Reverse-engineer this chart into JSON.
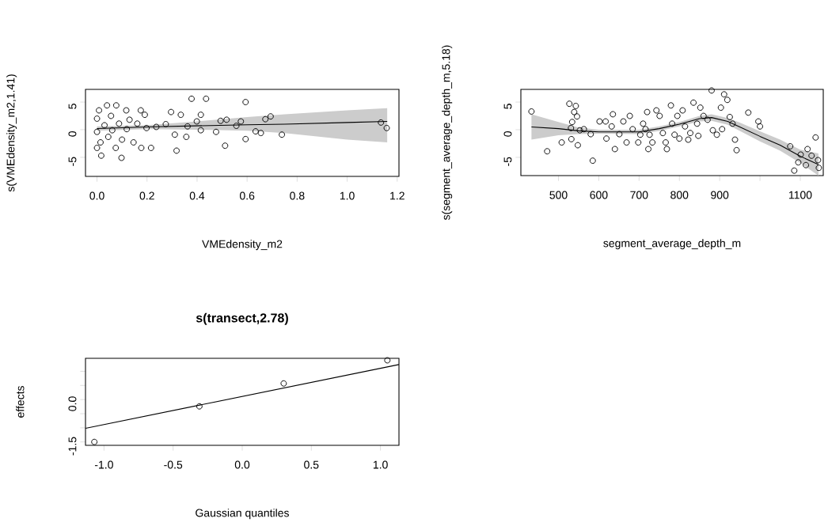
{
  "chart_data": [
    {
      "type": "scatter",
      "xlabel": "VMEdensity_m2",
      "ylabel": "s(VMEdensity_m2,1.41)",
      "xlim": [
        -0.046,
        1.207
      ],
      "ylim": [
        -8.46,
        7.3
      ],
      "xticks": [
        {
          "value": 0,
          "label": "0.0"
        },
        0.2,
        0.4,
        0.6,
        0.8,
        {
          "value": 1,
          "label": "1.0"
        },
        1.2
      ],
      "yticks": [
        -5,
        0,
        5
      ],
      "series": [
        {
          "type": "line",
          "color": "#000000",
          "line_style": "solid",
          "x": [
            0.0,
            0.2,
            0.4,
            0.6,
            0.75,
            1.0,
            1.16
          ],
          "values": [
            0.2,
            0.5,
            0.7,
            0.9,
            1.0,
            1.3,
            1.5
          ],
          "lower": [
            -0.2,
            0.1,
            0.0,
            -0.2,
            -0.6,
            -1.8,
            -2.3
          ],
          "upper": [
            0.6,
            0.8,
            1.5,
            2.3,
            2.8,
            3.5,
            3.9
          ]
        },
        {
          "type": "scatter",
          "color": "#000000",
          "marker": "circle",
          "x": [
            0.0,
            0.0,
            0.0,
            0.008,
            0.014,
            0.017,
            0.03,
            0.04,
            0.045,
            0.056,
            0.061,
            0.077,
            0.075,
            0.088,
            0.098,
            0.1,
            0.117,
            0.119,
            0.13,
            0.146,
            0.161,
            0.175,
            0.177,
            0.191,
            0.198,
            0.216,
            0.237,
            0.275,
            0.296,
            0.311,
            0.318,
            0.335,
            0.357,
            0.362,
            0.378,
            0.399,
            0.415,
            0.415,
            0.436,
            0.476,
            0.494,
            0.512,
            0.518,
            0.557,
            0.575,
            0.594,
            0.594,
            0.634,
            0.655,
            0.673,
            0.694,
            0.739,
            1.135,
            1.158
          ],
          "values": [
            2.0,
            -0.4,
            -3.3,
            3.5,
            -2.3,
            -4.7,
            0.8,
            4.4,
            -1.3,
            2.5,
            -0.1,
            4.4,
            -3.3,
            1.1,
            -5.1,
            -1.8,
            3.5,
            0.1,
            1.8,
            -2.3,
            1.1,
            3.5,
            -3.3,
            2.7,
            0.3,
            -3.3,
            0.5,
            1.0,
            3.2,
            -0.9,
            -3.8,
            2.7,
            -1.3,
            0.6,
            5.6,
            1.5,
            -0.1,
            2.7,
            5.6,
            -0.4,
            1.6,
            -2.9,
            1.8,
            0.7,
            1.5,
            5.0,
            -1.7,
            -0.3,
            -0.6,
            1.9,
            2.4,
            -0.9,
            1.3,
            0.3
          ]
        }
      ]
    },
    {
      "type": "scatter",
      "xlabel": "segment_average_depth_m",
      "ylabel": "s(segment_average_depth_m,5.18)",
      "xlim": [
        406.7,
        1157
      ],
      "ylim": [
        -8.3,
        7.3
      ],
      "xticks": [
        500,
        600,
        700,
        800,
        900,
        {
          "value": 1000,
          "label": null
        },
        1100
      ],
      "yticks": [
        -5,
        0,
        5
      ],
      "series": [
        {
          "type": "line",
          "color": "#000000",
          "line_style": "solid",
          "x": [
            433,
            500,
            550,
            600,
            700,
            750,
            800,
            850,
            880,
            920,
            950,
            1000,
            1050,
            1100,
            1145
          ],
          "values": [
            0.5,
            0.2,
            -0.2,
            -0.4,
            -0.4,
            0.2,
            1.0,
            2.0,
            2.2,
            1.5,
            0.5,
            -1.2,
            -2.8,
            -4.8,
            -6.3
          ],
          "lower": [
            -1.8,
            -1.0,
            -0.8,
            -0.7,
            -0.8,
            -0.2,
            0.6,
            1.5,
            1.6,
            0.9,
            -0.2,
            -2.1,
            -3.8,
            -6.0,
            -8.3
          ],
          "upper": [
            2.8,
            1.4,
            0.4,
            0.0,
            0.0,
            0.6,
            1.4,
            2.5,
            2.8,
            2.1,
            1.3,
            -0.3,
            -1.8,
            -3.6,
            -4.3
          ]
        },
        {
          "type": "scatter",
          "color": "#000000",
          "marker": "circle",
          "x": [
            433,
            472,
            508,
            527,
            543,
            539,
            546,
            534,
            531,
            532,
            548,
            553,
            563,
            580,
            585,
            602,
            617,
            619,
            635,
            640,
            632,
            651,
            661,
            669,
            677,
            684,
            698,
            703,
            710,
            716,
            720,
            723,
            726,
            733,
            743,
            751,
            759,
            766,
            769,
            779,
            782,
            788,
            795,
            800,
            808,
            814,
            822,
            827,
            835,
            844,
            847,
            852,
            860,
            870,
            880,
            883,
            893,
            903,
            911,
            906,
            919,
            925,
            932,
            938,
            942,
            971,
            996,
            1000,
            1075,
            1085,
            1095,
            1101,
            1118,
            1128,
            1138,
            1144,
            1146,
            1114
          ],
          "values": [
            3.3,
            -3.9,
            -2.3,
            4.7,
            4.3,
            3.2,
            2.4,
            1.4,
            0.3,
            -1.7,
            -2.8,
            -0.1,
            0.1,
            -0.8,
            -5.6,
            1.5,
            1.5,
            -1.6,
            2.8,
            -3.5,
            0.6,
            -0.8,
            1.5,
            -2.3,
            2.5,
            0.1,
            -2.3,
            -0.9,
            1.1,
            0.1,
            3.2,
            -3.5,
            -0.9,
            -2.3,
            3.5,
            2.5,
            -0.6,
            -2.3,
            -3.5,
            4.4,
            1.1,
            -0.9,
            2.5,
            -1.6,
            3.5,
            0.6,
            -1.8,
            -0.6,
            4.9,
            1.1,
            -1.1,
            4.0,
            2.5,
            1.8,
            7.1,
            -0.1,
            -0.9,
            4.0,
            6.4,
            0.1,
            5.4,
            2.3,
            1.1,
            -1.8,
            -3.7,
            3.1,
            1.5,
            0.6,
            -3.0,
            -7.4,
            -5.9,
            -4.5,
            -3.5,
            -4.7,
            -1.4,
            -5.5,
            -6.9,
            -6.4
          ]
        }
      ]
    },
    {
      "type": "scatter",
      "title": "s(transect,2.78)",
      "xlabel": "Gaussian quantiles",
      "ylabel": "effects",
      "xlim": [
        -1.134,
        1.134
      ],
      "ylim": [
        -1.62,
        1.46
      ],
      "xticks": [
        {
          "value": -1,
          "label": "-1.0"
        },
        -0.5,
        {
          "value": 0,
          "label": "0.0"
        },
        0.5,
        {
          "value": 1,
          "label": "1.0"
        }
      ],
      "yticks": [
        -1.5,
        {
          "value": -1.0,
          "label": null
        },
        {
          "value": -0.5,
          "label": null
        },
        {
          "value": 0.0,
          "label": "0.0"
        },
        {
          "value": 0.5,
          "label": null
        },
        {
          "value": 1.0,
          "label": null
        }
      ],
      "series": [
        {
          "type": "line",
          "color": "#000000",
          "line_style": "solid",
          "x": [
            -1.134,
            1.134
          ],
          "values": [
            -1.02,
            1.24
          ]
        },
        {
          "type": "scatter",
          "color": "#000000",
          "marker": "circle",
          "x": [
            -1.07,
            -0.31,
            0.3,
            1.05
          ],
          "values": [
            -1.5,
            -0.24,
            0.57,
            1.39
          ]
        }
      ]
    }
  ]
}
